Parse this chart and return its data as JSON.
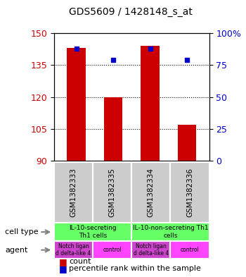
{
  "title": "GDS5609 / 1428148_s_at",
  "samples": [
    "GSM1382333",
    "GSM1382335",
    "GSM1382334",
    "GSM1382336"
  ],
  "bar_values": [
    143,
    120,
    144,
    107
  ],
  "bar_base": 90,
  "percentile_values": [
    88,
    79,
    88,
    79
  ],
  "ylim_left": [
    90,
    150
  ],
  "ylim_right": [
    0,
    100
  ],
  "yticks_left": [
    90,
    105,
    120,
    135,
    150
  ],
  "yticks_right": [
    0,
    25,
    50,
    75,
    100
  ],
  "bar_color": "#cc0000",
  "percentile_color": "#0000cc",
  "cell_type_labels": [
    "IL-10-secreting\nTh1 cells",
    "IL-10-non-secreting Th1\ncells"
  ],
  "cell_type_colors": [
    "#66ff66",
    "#66ff66"
  ],
  "agent_labels": [
    "Notch ligan\nd delta-like 4",
    "control",
    "Notch ligan\nd delta-like 4",
    "control"
  ],
  "agent_color": "#ff44ff",
  "sample_bg_color": "#cccccc",
  "grid_color": "#000000",
  "left_label_color": "#cc0000",
  "right_label_color": "#0000cc"
}
